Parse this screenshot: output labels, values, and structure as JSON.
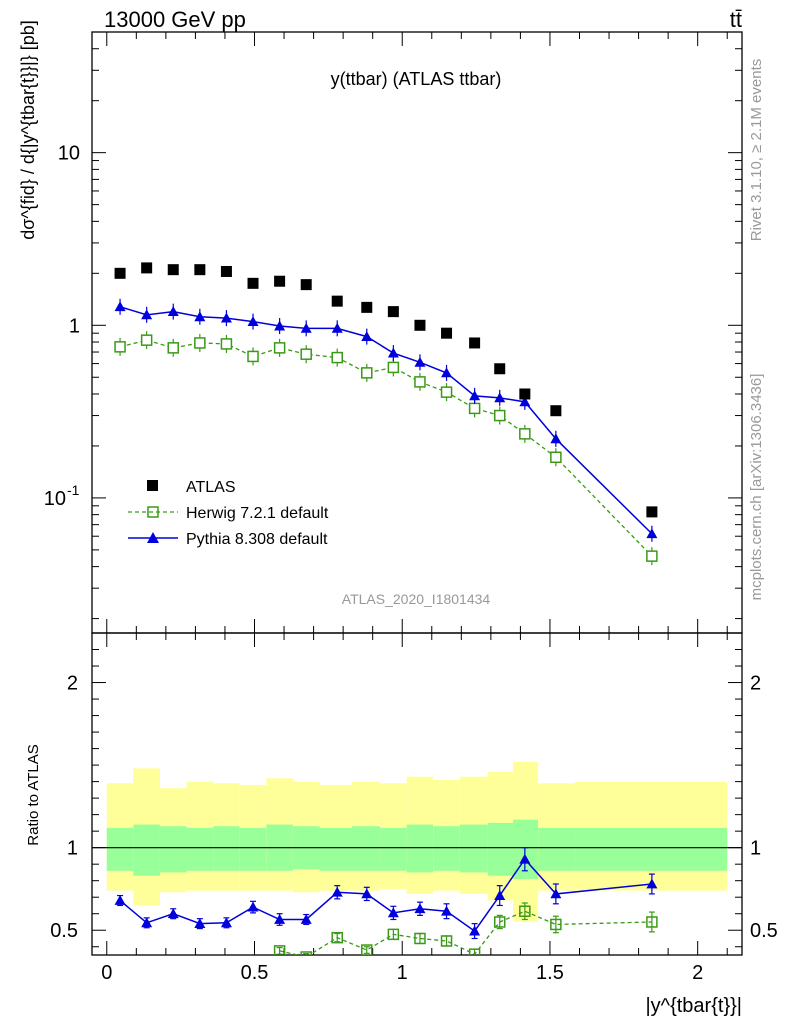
{
  "header": {
    "energy_label": "13000 GeV pp",
    "process_label": "tt̄"
  },
  "side_labels": {
    "rivet": "Rivet 3.1.10, ≥ 2.1M events",
    "mcplots": "mcplots.cern.ch [arXiv:1306.3436]"
  },
  "chart_data": [
    {
      "type": "scatter",
      "title": "y(ttbar) (ATLAS ttbar)",
      "analysis_label": "ATLAS_2020_I1801434",
      "ylabel": "dσ^{fid} / d{|y^{tbar{t}}|} [pb]",
      "yscale": "log",
      "xlim": [
        -0.05,
        2.15
      ],
      "ylim": [
        0.0165,
        50
      ],
      "ytick_labels": [
        "10^-1",
        "1",
        "10"
      ],
      "legend_position": "lower-left",
      "x": [
        0.045,
        0.135,
        0.225,
        0.315,
        0.405,
        0.495,
        0.585,
        0.675,
        0.78,
        0.88,
        0.97,
        1.06,
        1.15,
        1.245,
        1.33,
        1.415,
        1.52,
        1.845
      ],
      "series": [
        {
          "name": "ATLAS",
          "color": "#000000",
          "marker": "filled-square",
          "values": [
            2.0,
            2.15,
            2.1,
            2.1,
            2.05,
            1.75,
            1.8,
            1.72,
            1.38,
            1.27,
            1.2,
            1.0,
            0.9,
            0.79,
            0.56,
            0.4,
            0.32,
            0.083
          ]
        },
        {
          "name": "Herwig 7.2.1 default",
          "color": "#3a9a17",
          "marker": "open-square",
          "values": [
            0.75,
            0.82,
            0.74,
            0.79,
            0.78,
            0.66,
            0.74,
            0.68,
            0.65,
            0.53,
            0.57,
            0.47,
            0.41,
            0.33,
            0.3,
            0.235,
            0.172,
            0.046
          ]
        },
        {
          "name": "Pythia 8.308 default",
          "color": "#0000dd",
          "marker": "filled-triangle",
          "values": [
            1.28,
            1.15,
            1.2,
            1.12,
            1.1,
            1.05,
            0.99,
            0.96,
            0.96,
            0.86,
            0.69,
            0.61,
            0.53,
            0.39,
            0.38,
            0.36,
            0.22,
            0.062
          ]
        }
      ]
    },
    {
      "type": "line",
      "ylabel": "Ratio to ATLAS",
      "xlabel": "|y^{tbar{t}}|",
      "xlim": [
        -0.05,
        2.15
      ],
      "ylim": [
        0.35,
        2.3
      ],
      "xtick_labels": [
        "0",
        "0.5",
        "1",
        "1.5",
        "2"
      ],
      "ytick_labels": [
        "0.5",
        "1",
        "2"
      ],
      "band_edges": [
        0.0,
        0.09,
        0.18,
        0.27,
        0.36,
        0.45,
        0.54,
        0.63,
        0.72,
        0.83,
        0.925,
        1.015,
        1.105,
        1.195,
        1.29,
        1.375,
        1.46,
        1.585,
        2.1
      ],
      "band_inner": [
        [
          0.86,
          1.12
        ],
        [
          0.83,
          1.14
        ],
        [
          0.85,
          1.13
        ],
        [
          0.86,
          1.12
        ],
        [
          0.86,
          1.13
        ],
        [
          0.86,
          1.12
        ],
        [
          0.86,
          1.14
        ],
        [
          0.87,
          1.13
        ],
        [
          0.86,
          1.12
        ],
        [
          0.86,
          1.13
        ],
        [
          0.86,
          1.12
        ],
        [
          0.85,
          1.14
        ],
        [
          0.86,
          1.13
        ],
        [
          0.85,
          1.14
        ],
        [
          0.83,
          1.15
        ],
        [
          0.81,
          1.17
        ],
        [
          0.86,
          1.12
        ],
        [
          0.86,
          1.12
        ]
      ],
      "band_outer": [
        [
          0.74,
          1.39
        ],
        [
          0.65,
          1.48
        ],
        [
          0.73,
          1.36
        ],
        [
          0.74,
          1.4
        ],
        [
          0.74,
          1.39
        ],
        [
          0.74,
          1.38
        ],
        [
          0.74,
          1.42
        ],
        [
          0.73,
          1.4
        ],
        [
          0.74,
          1.38
        ],
        [
          0.74,
          1.4
        ],
        [
          0.75,
          1.39
        ],
        [
          0.72,
          1.43
        ],
        [
          0.74,
          1.41
        ],
        [
          0.72,
          1.43
        ],
        [
          0.68,
          1.46
        ],
        [
          0.55,
          1.52
        ],
        [
          0.74,
          1.39
        ],
        [
          0.74,
          1.4
        ]
      ],
      "reference": 1.0,
      "series": [
        {
          "name": "Herwig 7.2.1 default",
          "color": "#3a9a17",
          "x": [
            0.585,
            0.675,
            0.78,
            0.88,
            0.97,
            1.06,
            1.15,
            1.245,
            1.33,
            1.415,
            1.52,
            1.845
          ],
          "values": [
            0.375,
            0.338,
            0.455,
            0.38,
            0.475,
            0.45,
            0.435,
            0.355,
            0.55,
            0.615,
            0.535,
            0.55
          ],
          "errors": [
            0.02,
            0.02,
            0.025,
            0.02,
            0.03,
            0.03,
            0.03,
            0.03,
            0.04,
            0.05,
            0.05,
            0.06
          ]
        },
        {
          "name": "Pythia 8.308 default",
          "color": "#0000dd",
          "x": [
            0.045,
            0.135,
            0.225,
            0.315,
            0.405,
            0.495,
            0.585,
            0.675,
            0.78,
            0.88,
            0.97,
            1.06,
            1.15,
            1.245,
            1.33,
            1.415,
            1.52,
            1.845
          ],
          "values": [
            0.68,
            0.545,
            0.6,
            0.54,
            0.545,
            0.64,
            0.565,
            0.565,
            0.73,
            0.72,
            0.605,
            0.63,
            0.615,
            0.495,
            0.71,
            0.93,
            0.72,
            0.78
          ],
          "errors": [
            0.03,
            0.03,
            0.03,
            0.03,
            0.03,
            0.035,
            0.035,
            0.03,
            0.04,
            0.04,
            0.04,
            0.04,
            0.045,
            0.045,
            0.06,
            0.07,
            0.06,
            0.06
          ]
        }
      ]
    }
  ]
}
